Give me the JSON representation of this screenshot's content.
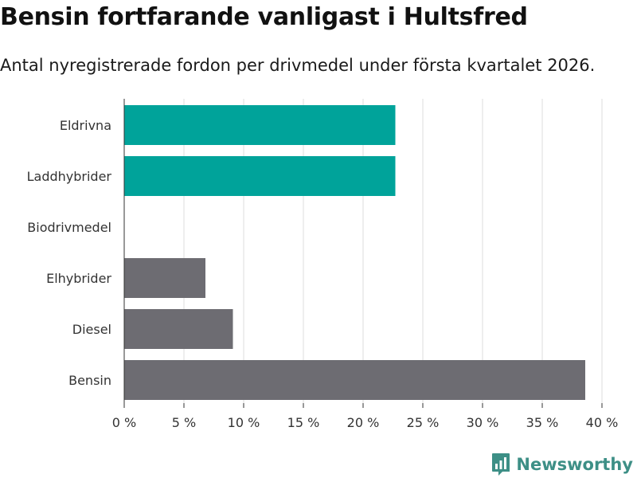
{
  "title": "Bensin fortfarande vanligast i Hultsfred",
  "subtitle": "Antal nyregistrerade fordon per drivmedel under första kvartalet 2026.",
  "brand": {
    "name": "Newsworthy"
  },
  "colors": {
    "highlight": "#00a39a",
    "default": "#6d6c72",
    "grid": "#dddddd",
    "axis": "#333333",
    "brand": "#3d8f86"
  },
  "chart_data": {
    "type": "bar",
    "orientation": "horizontal",
    "categories": [
      "Eldrivna",
      "Laddhybrider",
      "Biodrivmedel",
      "Elhybrider",
      "Diesel",
      "Bensin"
    ],
    "values": [
      22.7,
      22.7,
      0,
      6.8,
      9.1,
      38.6
    ],
    "highlight": [
      true,
      true,
      false,
      false,
      false,
      false
    ],
    "xlim": [
      0,
      40
    ],
    "x_ticks": [
      0,
      5,
      10,
      15,
      20,
      25,
      30,
      35,
      40
    ],
    "x_tick_labels": [
      "0 %",
      "5 %",
      "10 %",
      "15 %",
      "20 %",
      "25 %",
      "30 %",
      "35 %",
      "40 %"
    ],
    "grid": true,
    "legend": "none"
  }
}
